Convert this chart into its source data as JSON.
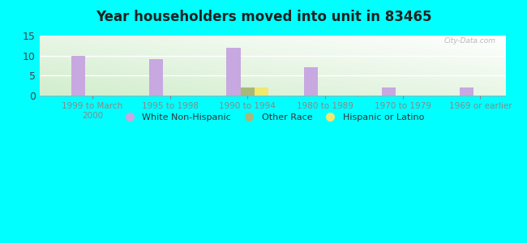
{
  "title": "Year householders moved into unit in 83465",
  "categories": [
    "1999 to March\n2000",
    "1995 to 1998",
    "1990 to 1994",
    "1980 to 1989",
    "1970 to 1979",
    "1969 or earlier"
  ],
  "white_non_hispanic": [
    10,
    9,
    12,
    7,
    2,
    2
  ],
  "other_race": [
    0,
    0,
    2,
    0,
    0,
    0
  ],
  "hispanic_or_latino": [
    0,
    0,
    2,
    0,
    0,
    0
  ],
  "bar_width": 0.18,
  "ylim": [
    0,
    15
  ],
  "yticks": [
    0,
    5,
    10,
    15
  ],
  "colors": {
    "white_non_hispanic": "#c8a8e0",
    "other_race": "#a8b87a",
    "hispanic_or_latino": "#f0e870"
  },
  "legend_labels": [
    "White Non-Hispanic",
    "Other Race",
    "Hispanic or Latino"
  ],
  "background_outer": "#00ffff",
  "watermark": "City-Data.com"
}
